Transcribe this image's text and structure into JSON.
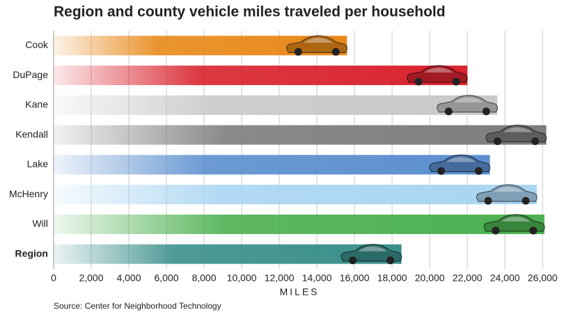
{
  "chart_data": {
    "type": "hbar",
    "title": "Region and county vehicle miles traveled per household",
    "categories": [
      "Cook",
      "DuPage",
      "Kane",
      "Kendall",
      "Lake",
      "McHenry",
      "Will",
      "Region"
    ],
    "values": [
      15600,
      22000,
      23600,
      26200,
      23200,
      25700,
      26100,
      18500
    ],
    "colors": [
      "#e8891a",
      "#d9232e",
      "#c9c9c9",
      "#7d7d7d",
      "#5b8fcf",
      "#a9d5f2",
      "#4cb050",
      "#3a8f8a"
    ],
    "xlim": [
      0,
      26000
    ],
    "xticks": [
      0,
      {
        "value": 2000,
        "label": "2,000"
      },
      {
        "value": 4000,
        "label": "4,000"
      },
      {
        "value": 6000,
        "label": "6,000"
      },
      {
        "value": 8000,
        "label": "8,000"
      },
      {
        "value": 10000,
        "label": "10,000"
      },
      {
        "value": 12000,
        "label": "12,000"
      },
      {
        "value": 14000,
        "label": "14,000"
      },
      {
        "value": 16000,
        "label": "16,000"
      },
      {
        "value": 18000,
        "label": "18,000"
      },
      {
        "value": 20000,
        "label": "20,000"
      },
      {
        "value": 22000,
        "label": "22,000"
      },
      {
        "value": 24000,
        "label": "24,000"
      },
      {
        "value": 26000,
        "label": "26,000"
      }
    ],
    "xlabel": "MILES",
    "source": "Source: Center for Neighborhood Technology",
    "grid": true
  }
}
